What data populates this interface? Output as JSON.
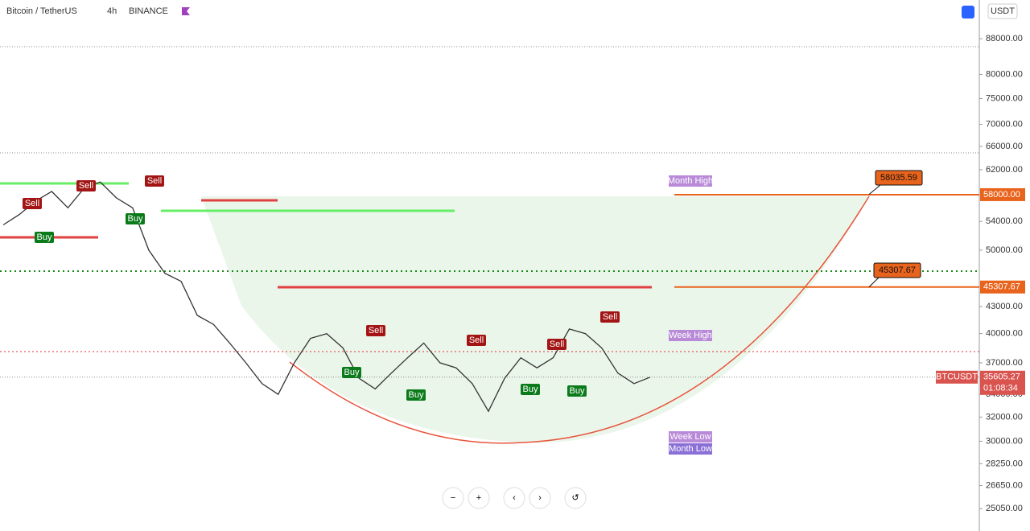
{
  "header": {
    "symbol": "Bitcoin / TetherUS",
    "interval": "4h",
    "exchange": "BINANCE",
    "currency": "USDT"
  },
  "chart_data": {
    "type": "line",
    "color": "#333333",
    "scale": "log",
    "values": [
      53500,
      55000,
      57000,
      58500,
      56000,
      59000,
      60000,
      57500,
      56000,
      50000,
      47000,
      46000,
      42000,
      41000,
      39000,
      37000,
      35000,
      34000,
      37000,
      39500,
      40000,
      38500,
      35500,
      34500,
      36000,
      37500,
      39000,
      37000,
      36500,
      35000,
      32500,
      35500,
      37500,
      36500,
      37500,
      40500,
      40000,
      38500,
      36000,
      35000,
      35605.27
    ],
    "ylim": [
      23700,
      97600
    ],
    "yticks": [
      {
        "value": 88000,
        "label": "88000.00"
      },
      {
        "value": 80000,
        "label": "80000.00"
      },
      {
        "value": 75000,
        "label": "75000.00"
      },
      {
        "value": 70000,
        "label": "70000.00"
      },
      {
        "value": 66000,
        "label": "66000.00"
      },
      {
        "value": 62000,
        "label": "62000.00"
      },
      {
        "value": 54000,
        "label": "54000.00"
      },
      {
        "value": 50000,
        "label": "50000.00"
      },
      {
        "value": 43000,
        "label": "43000.00"
      },
      {
        "value": 40000,
        "label": "40000.00"
      },
      {
        "value": 37000,
        "label": "37000.00"
      },
      {
        "value": 34000,
        "label": "34000.00"
      },
      {
        "value": 32000,
        "label": "32000.00"
      },
      {
        "value": 30000,
        "label": "30000.00"
      },
      {
        "value": 28250,
        "label": "28250.00"
      },
      {
        "value": 26650,
        "label": "26650.00"
      },
      {
        "value": 25050,
        "label": "25050.00"
      }
    ],
    "levels": [
      {
        "value": 58000,
        "label": "58000.00",
        "color": "#e8631c"
      },
      {
        "value": 45307.67,
        "label": "45307.67",
        "color": "#e8631c"
      }
    ],
    "callouts": [
      {
        "value": 58035.59,
        "label": "58035.59"
      },
      {
        "value": 45307.67,
        "label": "45307.67"
      }
    ],
    "last_price": {
      "value": 35605.27,
      "label": "35605.27",
      "symbol": "BTCUSDT",
      "countdown": "01:08:34"
    },
    "signals": [
      "Sell",
      "Buy",
      "Sell",
      "Buy",
      "Sell",
      "Buy",
      "Sell",
      "Buy",
      "Sell",
      "Buy",
      "Sell",
      "Buy",
      "Sell"
    ],
    "zones": [
      "Month High",
      "Week High",
      "Week Low",
      "Month Low"
    ]
  }
}
